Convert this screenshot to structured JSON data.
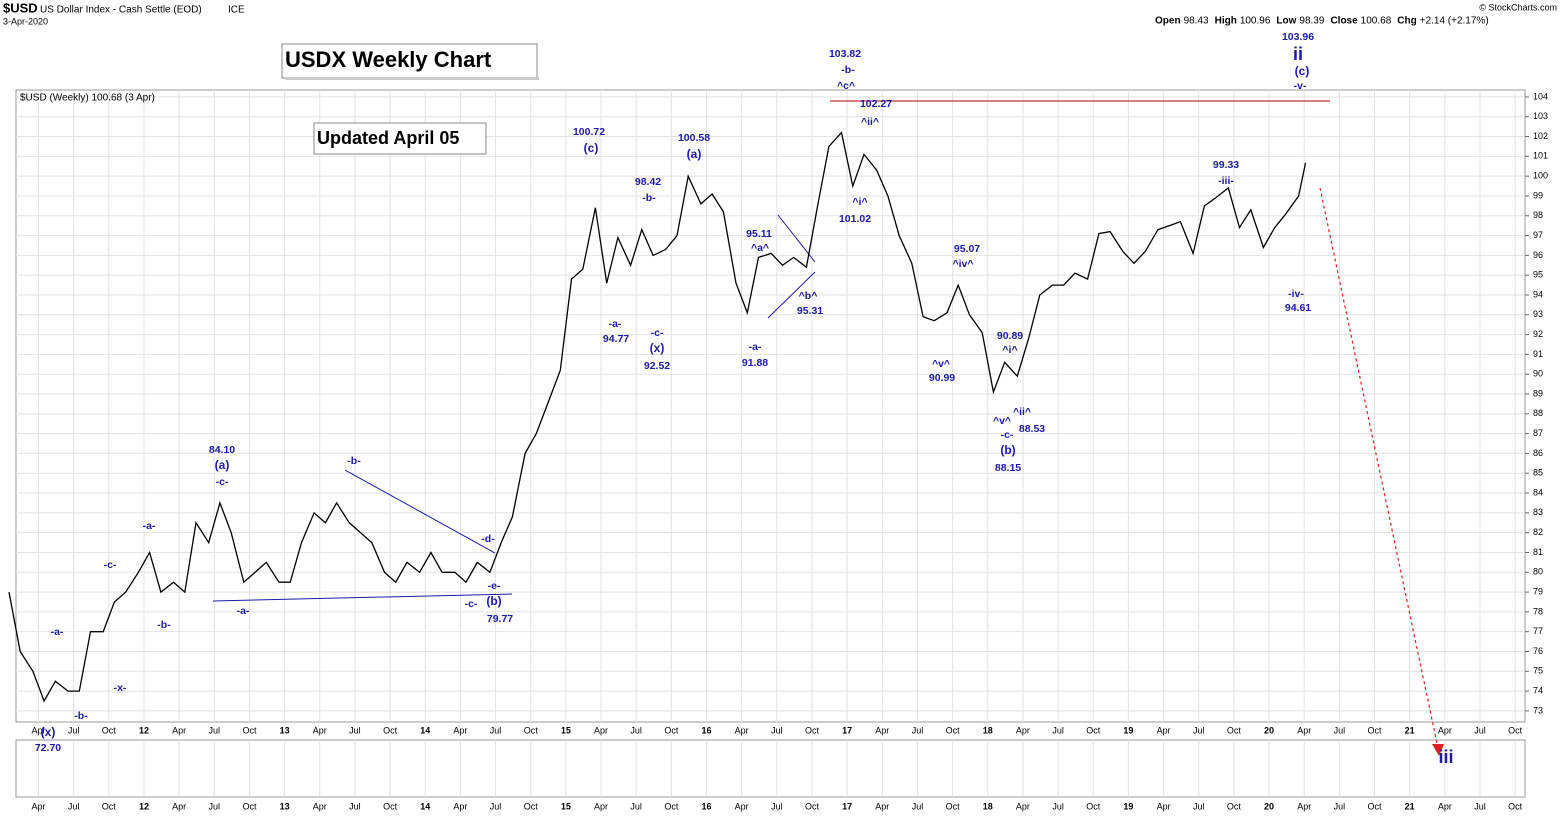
{
  "header": {
    "symbol": "$USD",
    "name": "US Dollar Index - Cash Settle (EOD)",
    "exchange": "ICE",
    "date": "3-Apr-2020",
    "credit": "© StockCharts.com",
    "quote": [
      {
        "label": "Open",
        "value": 98.43
      },
      {
        "label": "High",
        "value": 100.96
      },
      {
        "label": "Low",
        "value": 98.39
      },
      {
        "label": "Close",
        "value": 100.68
      },
      {
        "label": "Chg",
        "value": "+2.14 (+2.17%)"
      }
    ]
  },
  "chart_data": {
    "type": "line",
    "title": "USDX Weekly Chart",
    "subtitle": "Updated April 05",
    "legend": "$USD (Weekly) 100.68 (3 Apr)",
    "xlim": [
      2011.09,
      2021.82
    ],
    "ylim": [
      72.44,
      104.35
    ],
    "yticks": [
      73,
      74,
      75,
      76,
      77,
      78,
      79,
      80,
      81,
      82,
      83,
      84,
      85,
      86,
      87,
      88,
      89,
      90,
      91,
      92,
      93,
      94,
      95,
      96,
      97,
      98,
      99,
      100,
      101,
      102,
      103,
      104
    ],
    "xticks": [
      {
        "value": 2011.25,
        "label": "Apr"
      },
      {
        "value": 2011.5,
        "label": "Jul"
      },
      {
        "value": 2011.75,
        "label": "Oct"
      },
      {
        "value": 2012,
        "label": "12"
      },
      {
        "value": 2012.25,
        "label": "Apr"
      },
      {
        "value": 2012.5,
        "label": "Jul"
      },
      {
        "value": 2012.75,
        "label": "Oct"
      },
      {
        "value": 2013,
        "label": "13"
      },
      {
        "value": 2013.25,
        "label": "Apr"
      },
      {
        "value": 2013.5,
        "label": "Jul"
      },
      {
        "value": 2013.75,
        "label": "Oct"
      },
      {
        "value": 2014,
        "label": "14"
      },
      {
        "value": 2014.25,
        "label": "Apr"
      },
      {
        "value": 2014.5,
        "label": "Jul"
      },
      {
        "value": 2014.75,
        "label": "Oct"
      },
      {
        "value": 2015,
        "label": "15"
      },
      {
        "value": 2015.25,
        "label": "Apr"
      },
      {
        "value": 2015.5,
        "label": "Jul"
      },
      {
        "value": 2015.75,
        "label": "Oct"
      },
      {
        "value": 2016,
        "label": "16"
      },
      {
        "value": 2016.25,
        "label": "Apr"
      },
      {
        "value": 2016.5,
        "label": "Jul"
      },
      {
        "value": 2016.75,
        "label": "Oct"
      },
      {
        "value": 2017,
        "label": "17"
      },
      {
        "value": 2017.25,
        "label": "Apr"
      },
      {
        "value": 2017.5,
        "label": "Jul"
      },
      {
        "value": 2017.75,
        "label": "Oct"
      },
      {
        "value": 2018,
        "label": "18"
      },
      {
        "value": 2018.25,
        "label": "Apr"
      },
      {
        "value": 2018.5,
        "label": "Jul"
      },
      {
        "value": 2018.75,
        "label": "Oct"
      },
      {
        "value": 2019,
        "label": "19"
      },
      {
        "value": 2019.25,
        "label": "Apr"
      },
      {
        "value": 2019.5,
        "label": "Jul"
      },
      {
        "value": 2019.75,
        "label": "Oct"
      },
      {
        "value": 2020,
        "label": "20"
      },
      {
        "value": 2020.25,
        "label": "Apr"
      },
      {
        "value": 2020.5,
        "label": "Jul"
      },
      {
        "value": 2020.75,
        "label": "Oct"
      },
      {
        "value": 2021,
        "label": "21"
      },
      {
        "value": 2021.25,
        "label": "Apr"
      },
      {
        "value": 2021.5,
        "label": "Jul"
      },
      {
        "value": 2021.75,
        "label": "Oct"
      }
    ],
    "grid": true,
    "x": [
      2011.04,
      2011.12,
      2011.21,
      2011.29,
      2011.37,
      2011.46,
      2011.54,
      2011.62,
      2011.71,
      2011.79,
      2011.87,
      2011.96,
      2012.04,
      2012.12,
      2012.21,
      2012.29,
      2012.37,
      2012.46,
      2012.54,
      2012.62,
      2012.71,
      2012.79,
      2012.87,
      2012.96,
      2013.04,
      2013.12,
      2013.21,
      2013.29,
      2013.37,
      2013.46,
      2013.54,
      2013.62,
      2013.71,
      2013.79,
      2013.87,
      2013.96,
      2014.04,
      2014.12,
      2014.21,
      2014.29,
      2014.37,
      2014.46,
      2014.54,
      2014.62,
      2014.71,
      2014.79,
      2014.87,
      2014.96,
      2015.04,
      2015.12,
      2015.21,
      2015.29,
      2015.37,
      2015.46,
      2015.54,
      2015.62,
      2015.71,
      2015.79,
      2015.87,
      2015.96,
      2016.04,
      2016.12,
      2016.21,
      2016.29,
      2016.37,
      2016.46,
      2016.54,
      2016.62,
      2016.71,
      2016.79,
      2016.87,
      2016.96,
      2017.04,
      2017.12,
      2017.21,
      2017.29,
      2017.37,
      2017.46,
      2017.54,
      2017.62,
      2017.71,
      2017.79,
      2017.87,
      2017.96,
      2018.04,
      2018.12,
      2018.21,
      2018.29,
      2018.37,
      2018.46,
      2018.54,
      2018.62,
      2018.71,
      2018.79,
      2018.87,
      2018.96,
      2019.04,
      2019.12,
      2019.21,
      2019.29,
      2019.37,
      2019.46,
      2019.54,
      2019.62,
      2019.71,
      2019.79,
      2019.87,
      2019.96,
      2020.04,
      2020.12,
      2020.21,
      2020.26
    ],
    "series": [
      {
        "name": "$USD",
        "color": "#000000",
        "values": [
          79,
          76,
          75,
          73.5,
          74.5,
          74,
          74,
          77,
          77,
          78.5,
          79,
          80,
          81,
          79,
          79.5,
          79,
          82.5,
          81.5,
          83.5,
          82,
          79.5,
          80,
          80.5,
          79.5,
          79.5,
          81.5,
          83,
          82.5,
          83.5,
          82.5,
          82,
          81.5,
          80,
          79.5,
          80.5,
          80,
          81,
          80,
          80,
          79.5,
          80.5,
          80,
          81.5,
          82.8,
          86,
          87,
          88.5,
          90.2,
          94.8,
          95.3,
          98.4,
          94.6,
          96.9,
          95.5,
          97.3,
          96,
          96.3,
          97,
          100,
          98.6,
          99.1,
          98.2,
          94.6,
          93.1,
          95.9,
          96.1,
          95.5,
          95.9,
          95.4,
          98.5,
          101.5,
          102.2,
          99.5,
          101.1,
          100.3,
          99,
          97,
          95.6,
          92.9,
          92.7,
          93.1,
          94.5,
          93,
          92.1,
          89.1,
          90.6,
          89.9,
          91.8,
          94,
          94.5,
          94.5,
          95.1,
          94.8,
          97.1,
          97.2,
          96.2,
          95.6,
          96.2,
          97.3,
          97.5,
          97.7,
          96.1,
          98.5,
          98.9,
          99.4,
          97.4,
          98.3,
          96.4,
          97.4,
          98.1,
          99,
          100.68
        ]
      }
    ],
    "annotations": [
      "72.70",
      "(x)",
      "-a-",
      "-b-",
      "-c-",
      "-x-",
      "-a-",
      "-b-",
      "84.10",
      "(a)",
      "-c-",
      "-a-",
      "-b-",
      "-d-",
      "-e-",
      "-c-",
      "(b)",
      "79.77",
      "100.72",
      "(c)",
      "-a-",
      "94.77",
      "98.42",
      "-b-",
      "-c-",
      "(x)",
      "92.52",
      "100.58",
      "(a)",
      "95.11",
      "^a^",
      "-a-",
      "91.88",
      "^b^",
      "95.31",
      "103.82",
      "-b-",
      "^c^",
      "102.27",
      "^ii^",
      "^i^",
      "101.02",
      "95.07",
      "^iv^",
      "^v^",
      "90.99",
      "90.89",
      "^i^",
      "^v^",
      "^ii^",
      "-c-",
      "88.53",
      "(b)",
      "88.15",
      "99.33",
      "-iii-",
      "-iv-",
      "94.61",
      "103.96",
      "ii",
      "(c)",
      "-v-",
      "iii"
    ]
  }
}
